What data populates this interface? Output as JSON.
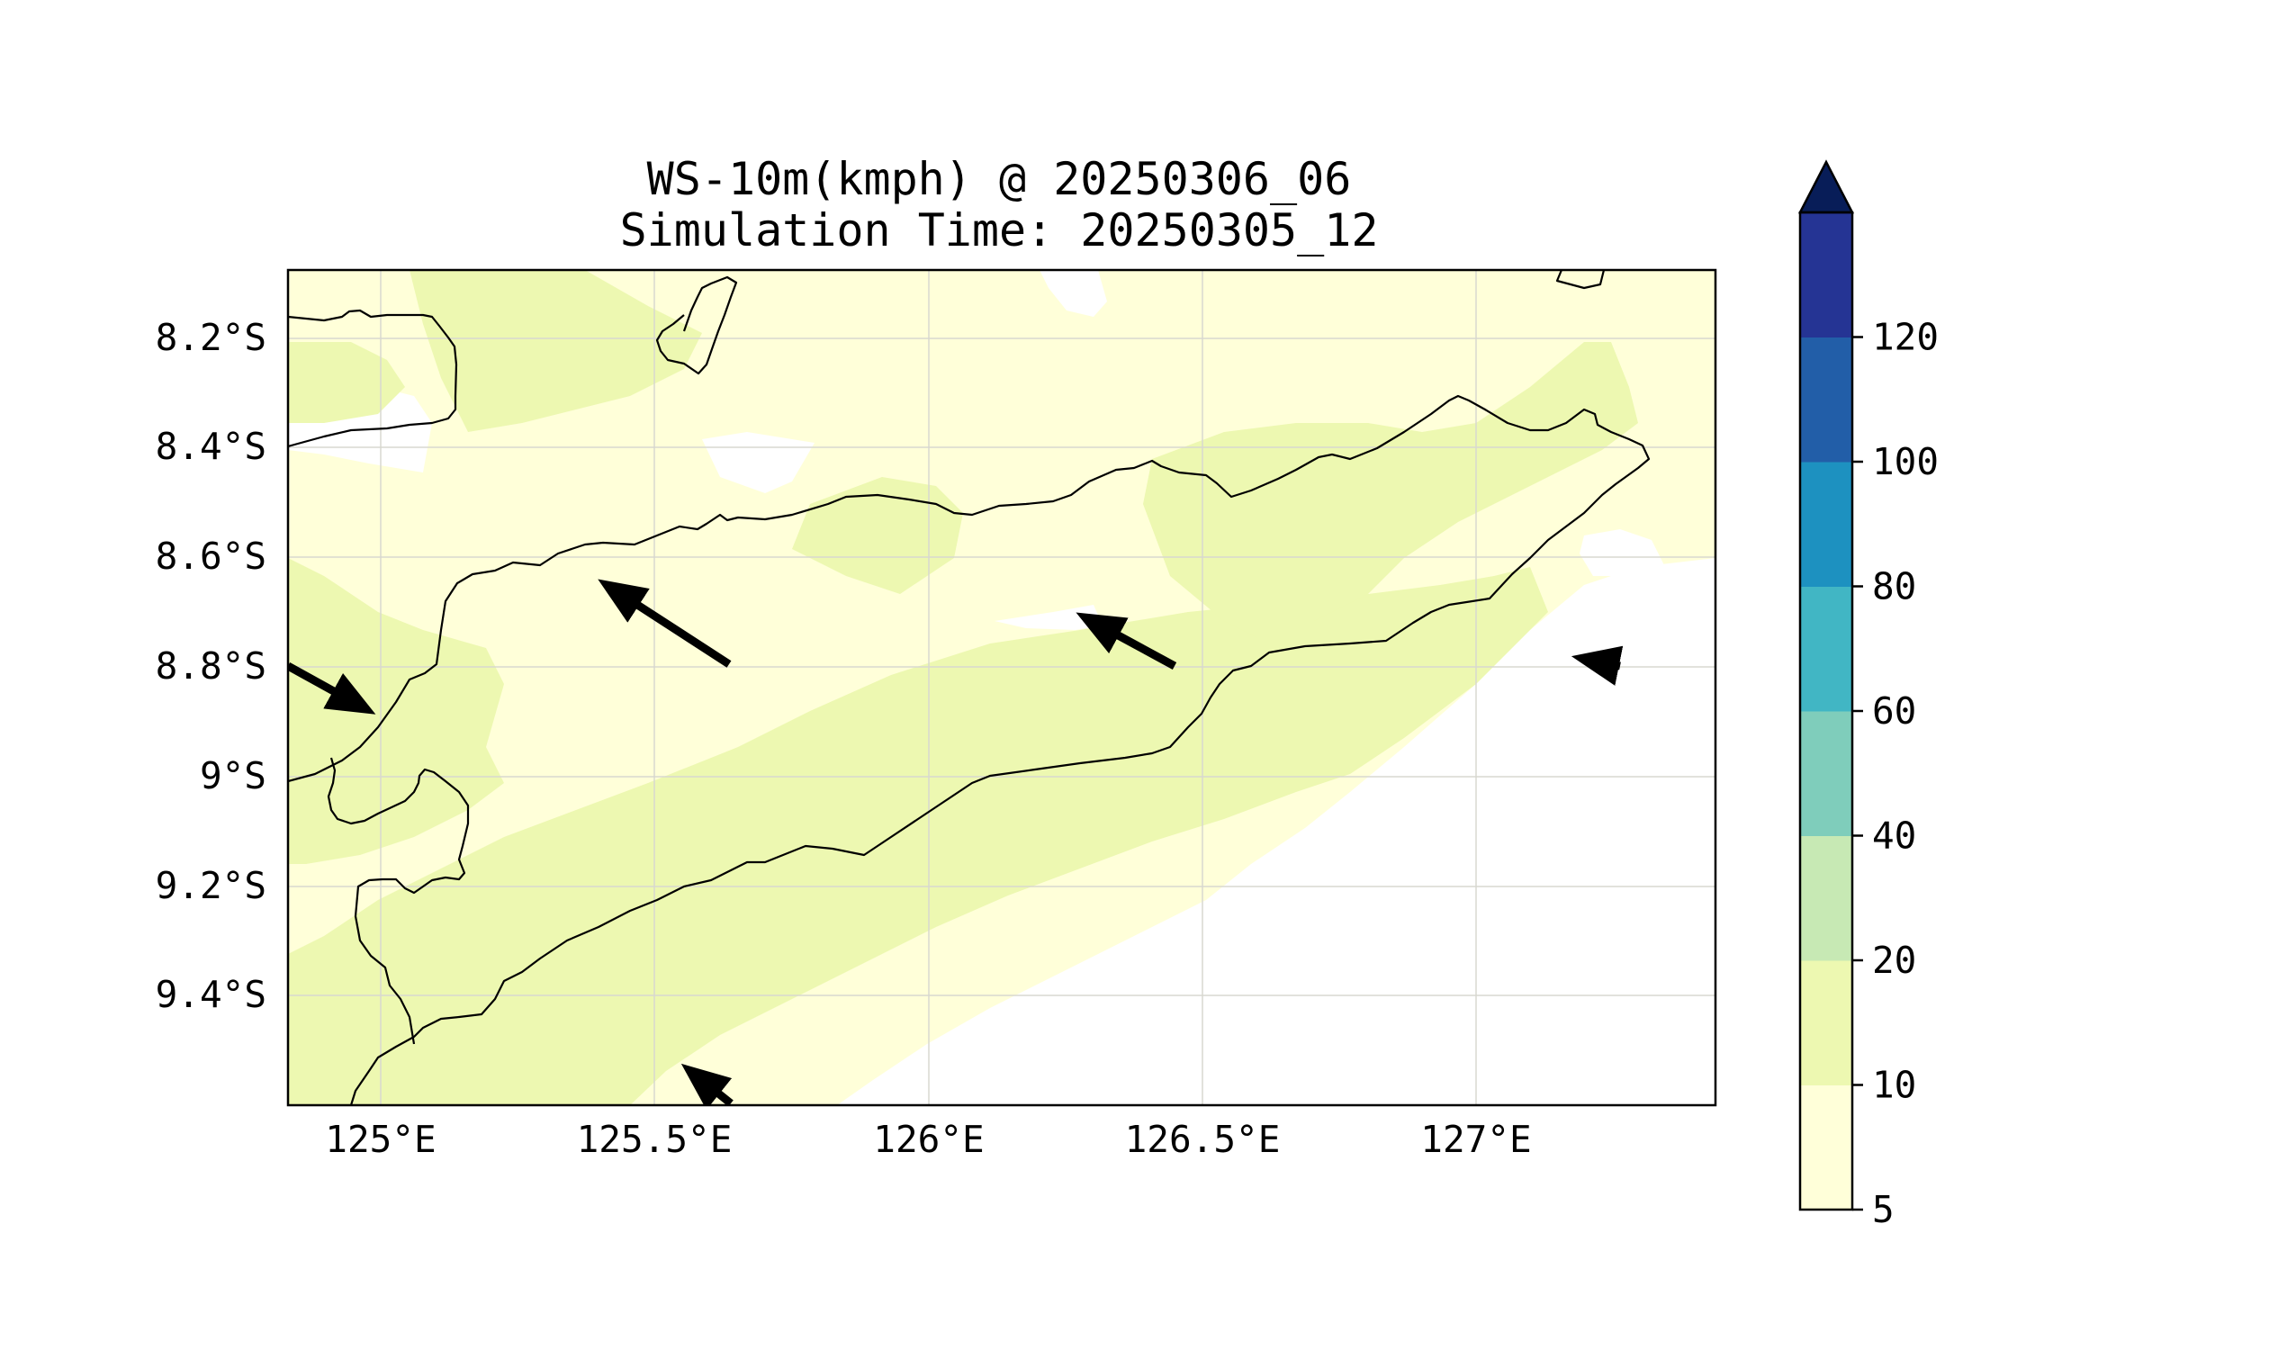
{
  "title": {
    "line1": "WS-10m(kmph) @ 20250306_06",
    "line2": "Simulation Time: 20250305_12"
  },
  "map": {
    "lon_ticks": [
      "125°E",
      "125.5°E",
      "126°E",
      "126.5°E",
      "127°E"
    ],
    "lat_ticks": [
      "8.2°S",
      "8.4°S",
      "8.6°S",
      "8.8°S",
      "9°S",
      "9.2°S",
      "9.4°S"
    ],
    "gridlines": true,
    "field_colors": {
      "5-10": "#ffffd9",
      "10-20": "#edf8b1",
      "below-5": "#ffffff"
    },
    "wind_vectors": [
      {
        "name": "vector-west",
        "direction": "ESE"
      },
      {
        "name": "vector-central-north",
        "direction": "WNW"
      },
      {
        "name": "vector-central-east",
        "direction": "WNW"
      },
      {
        "name": "vector-east",
        "direction": "W"
      },
      {
        "name": "vector-south",
        "direction": "NW"
      }
    ]
  },
  "colorbar": {
    "levels": [
      "5",
      "10",
      "20",
      "40",
      "60",
      "80",
      "100",
      "120"
    ],
    "colors": [
      "#ffffd9",
      "#edf8b1",
      "#c7e9b4",
      "#7fcdbb",
      "#41b6c4",
      "#1d91c0",
      "#225ea8",
      "#253494"
    ],
    "extend_color": "#081d58",
    "extend": "max"
  }
}
